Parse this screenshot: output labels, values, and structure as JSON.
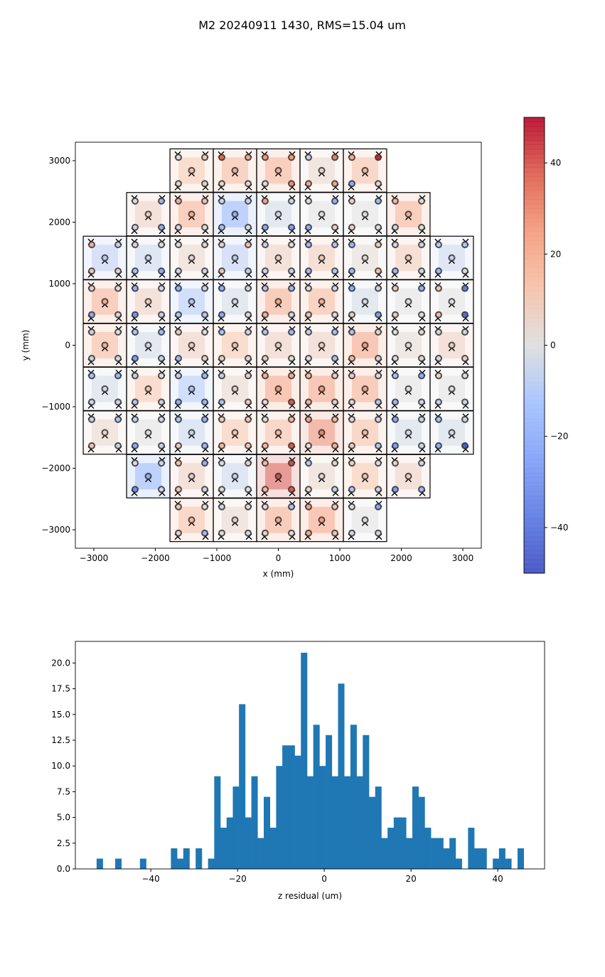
{
  "title": "M2 20240911 1430, RMS=15.04 um",
  "chart_data": [
    {
      "type": "heatmap",
      "xlabel": "x (mm)",
      "ylabel": "y (mm)",
      "xlim": [
        -3300,
        3300
      ],
      "ylim": [
        -3300,
        3300
      ],
      "xticks": [
        -3000,
        -2000,
        -1000,
        0,
        1000,
        2000,
        3000
      ],
      "xtick_labels": [
        "−3000",
        "−2000",
        "−1000",
        "0",
        "1000",
        "2000",
        "3000"
      ],
      "yticks": [
        3000,
        2000,
        1000,
        0,
        -1000,
        -2000,
        -3000
      ],
      "ytick_labels": [
        "3000",
        "2000",
        "1000",
        "0",
        "−1000",
        "−2000",
        "−3000"
      ],
      "colormap": "coolwarm",
      "colorbar": {
        "range": [
          -50,
          50
        ],
        "ticks": [
          40,
          20,
          0,
          -20,
          -40
        ],
        "tick_labels": [
          "40",
          "20",
          "0",
          "−20",
          "−40"
        ]
      },
      "point_order": [
        "center",
        "upper-left",
        "upper-right",
        "lower-left",
        "lower-right"
      ],
      "segments": [
        {
          "x": -1410,
          "y": 2840,
          "values": [
            12,
            0,
            8,
            2,
            3
          ]
        },
        {
          "x": -705,
          "y": 2840,
          "values": [
            18,
            35,
            20,
            3,
            2
          ]
        },
        {
          "x": 0,
          "y": 2840,
          "values": [
            20,
            25,
            25,
            0,
            28
          ]
        },
        {
          "x": 705,
          "y": 2840,
          "values": [
            5,
            -5,
            30,
            20,
            22
          ]
        },
        {
          "x": 1410,
          "y": 2840,
          "values": [
            15,
            18,
            45,
            -20,
            3
          ]
        },
        {
          "x": -2115,
          "y": 2130,
          "values": [
            8,
            0,
            -15,
            -3,
            -20
          ]
        },
        {
          "x": -1410,
          "y": 2130,
          "values": [
            20,
            18,
            10,
            -3,
            0
          ]
        },
        {
          "x": -705,
          "y": 2130,
          "values": [
            -20,
            -3,
            -3,
            -12,
            0
          ]
        },
        {
          "x": 0,
          "y": 2130,
          "values": [
            -3,
            22,
            -3,
            -20,
            -25
          ]
        },
        {
          "x": 705,
          "y": 2130,
          "values": [
            0,
            0,
            -18,
            -20,
            5
          ]
        },
        {
          "x": 1410,
          "y": 2130,
          "values": [
            0,
            5,
            -15,
            5,
            0
          ]
        },
        {
          "x": 2115,
          "y": 2130,
          "values": [
            20,
            15,
            2,
            -3,
            0
          ]
        },
        {
          "x": -2820,
          "y": 1420,
          "values": [
            -8,
            18,
            -5,
            10,
            5
          ]
        },
        {
          "x": -2115,
          "y": 1420,
          "values": [
            -5,
            5,
            0,
            -12,
            -20
          ]
        },
        {
          "x": -1410,
          "y": 1420,
          "values": [
            5,
            0,
            3,
            -3,
            -3
          ]
        },
        {
          "x": -705,
          "y": 1420,
          "values": [
            -8,
            3,
            12,
            10,
            -5
          ]
        },
        {
          "x": 0,
          "y": 1420,
          "values": [
            8,
            -5,
            0,
            -3,
            -5
          ]
        },
        {
          "x": 705,
          "y": 1420,
          "values": [
            10,
            -15,
            -10,
            -15,
            -8
          ]
        },
        {
          "x": 1410,
          "y": 1420,
          "values": [
            3,
            -15,
            8,
            -15,
            12
          ]
        },
        {
          "x": 2115,
          "y": 1420,
          "values": [
            10,
            -3,
            -3,
            -15,
            -3
          ]
        },
        {
          "x": 2820,
          "y": 1420,
          "values": [
            -5,
            -8,
            -10,
            -15,
            0
          ]
        },
        {
          "x": -2820,
          "y": 710,
          "values": [
            20,
            5,
            0,
            -20,
            3
          ]
        },
        {
          "x": -2115,
          "y": 710,
          "values": [
            8,
            -18,
            -3,
            -28,
            -5
          ]
        },
        {
          "x": -1410,
          "y": 710,
          "values": [
            -10,
            -18,
            -3,
            -10,
            -8
          ]
        },
        {
          "x": -705,
          "y": 710,
          "values": [
            -3,
            -18,
            -3,
            -20,
            3
          ]
        },
        {
          "x": 0,
          "y": 710,
          "values": [
            22,
            -10,
            -15,
            18,
            -3
          ]
        },
        {
          "x": 705,
          "y": 710,
          "values": [
            18,
            0,
            -3,
            12,
            0
          ]
        },
        {
          "x": 1410,
          "y": 710,
          "values": [
            -3,
            -18,
            -3,
            5,
            -25
          ]
        },
        {
          "x": 2115,
          "y": 710,
          "values": [
            0,
            8,
            -18,
            8,
            0
          ]
        },
        {
          "x": 2820,
          "y": 710,
          "values": [
            0,
            10,
            -35,
            15,
            -40
          ]
        },
        {
          "x": -2820,
          "y": 0,
          "values": [
            18,
            -5,
            0,
            -5,
            -3
          ]
        },
        {
          "x": -2115,
          "y": 0,
          "values": [
            -3,
            -10,
            -15,
            -25,
            -5
          ]
        },
        {
          "x": -1410,
          "y": 0,
          "values": [
            8,
            8,
            0,
            -15,
            5
          ]
        },
        {
          "x": -705,
          "y": 0,
          "values": [
            12,
            -12,
            -3,
            5,
            3
          ]
        },
        {
          "x": 0,
          "y": 0,
          "values": [
            8,
            -10,
            -15,
            8,
            0
          ]
        },
        {
          "x": 705,
          "y": 0,
          "values": [
            8,
            -5,
            -12,
            0,
            -12
          ]
        },
        {
          "x": 1410,
          "y": 0,
          "values": [
            25,
            -12,
            3,
            15,
            -3
          ]
        },
        {
          "x": 2115,
          "y": 0,
          "values": [
            3,
            0,
            3,
            0,
            3
          ]
        },
        {
          "x": 2820,
          "y": 0,
          "values": [
            8,
            -3,
            -3,
            -3,
            5
          ]
        },
        {
          "x": -2820,
          "y": -710,
          "values": [
            -3,
            -12,
            -15,
            -3,
            -3
          ]
        },
        {
          "x": -2115,
          "y": -710,
          "values": [
            12,
            -5,
            0,
            -10,
            -5
          ]
        },
        {
          "x": -1410,
          "y": -710,
          "values": [
            -10,
            -5,
            -15,
            -20,
            -15
          ]
        },
        {
          "x": -705,
          "y": -710,
          "values": [
            5,
            -5,
            5,
            -12,
            8
          ]
        },
        {
          "x": 0,
          "y": -710,
          "values": [
            25,
            18,
            20,
            0,
            38
          ]
        },
        {
          "x": 705,
          "y": -710,
          "values": [
            25,
            15,
            5,
            18,
            5
          ]
        },
        {
          "x": 1410,
          "y": -710,
          "values": [
            22,
            5,
            0,
            3,
            -10
          ]
        },
        {
          "x": 2115,
          "y": -710,
          "values": [
            0,
            -12,
            -20,
            -15,
            -3
          ]
        },
        {
          "x": 2820,
          "y": -710,
          "values": [
            0,
            5,
            0,
            -5,
            -3
          ]
        },
        {
          "x": -2820,
          "y": -1420,
          "values": [
            5,
            -5,
            -10,
            12,
            -5
          ]
        },
        {
          "x": -2115,
          "y": -1420,
          "values": [
            0,
            -5,
            -3,
            -20,
            -5
          ]
        },
        {
          "x": -1410,
          "y": -1420,
          "values": [
            -5,
            -10,
            -18,
            8,
            -15
          ]
        },
        {
          "x": -705,
          "y": -1420,
          "values": [
            12,
            8,
            10,
            15,
            8
          ]
        },
        {
          "x": 0,
          "y": -1420,
          "values": [
            15,
            0,
            15,
            15,
            38
          ]
        },
        {
          "x": 705,
          "y": -1420,
          "values": [
            30,
            22,
            15,
            0,
            18
          ]
        },
        {
          "x": 1410,
          "y": -1420,
          "values": [
            15,
            3,
            -3,
            8,
            -10
          ]
        },
        {
          "x": 2115,
          "y": -1420,
          "values": [
            -3,
            -20,
            -5,
            -25,
            -3
          ]
        },
        {
          "x": 2820,
          "y": -1420,
          "values": [
            -3,
            -12,
            -3,
            -20,
            -45
          ]
        },
        {
          "x": -2115,
          "y": -2130,
          "values": [
            -20,
            0,
            -3,
            -30,
            -3
          ]
        },
        {
          "x": -1410,
          "y": -2130,
          "values": [
            8,
            12,
            -18,
            10,
            -3
          ]
        },
        {
          "x": -705,
          "y": -2130,
          "values": [
            -5,
            0,
            5,
            3,
            0
          ]
        },
        {
          "x": 0,
          "y": -2130,
          "values": [
            40,
            15,
            40,
            15,
            38
          ]
        },
        {
          "x": 705,
          "y": -2130,
          "values": [
            5,
            -8,
            3,
            5,
            -5
          ]
        },
        {
          "x": 1410,
          "y": -2130,
          "values": [
            12,
            5,
            0,
            -10,
            -3
          ]
        },
        {
          "x": 2115,
          "y": -2130,
          "values": [
            8,
            5,
            -3,
            -25,
            -15
          ]
        },
        {
          "x": -1410,
          "y": -2840,
          "values": [
            15,
            10,
            0,
            5,
            -15
          ]
        },
        {
          "x": -705,
          "y": -2840,
          "values": [
            5,
            -3,
            0,
            0,
            -3
          ]
        },
        {
          "x": 0,
          "y": -2840,
          "values": [
            22,
            0,
            -10,
            3,
            0
          ]
        },
        {
          "x": 705,
          "y": -2840,
          "values": [
            25,
            22,
            10,
            20,
            10
          ]
        },
        {
          "x": 1410,
          "y": -2840,
          "values": [
            0,
            0,
            -22,
            -3,
            -3
          ]
        }
      ]
    },
    {
      "type": "bar",
      "subtype": "histogram",
      "xlabel": "z residual (um)",
      "ylabel": "",
      "xlim": [
        -57.4,
        50.8
      ],
      "ylim": [
        0,
        22.1
      ],
      "xticks": [
        -40,
        -20,
        0,
        20,
        40
      ],
      "xtick_labels": [
        "−40",
        "−20",
        "0",
        "20",
        "40"
      ],
      "yticks": [
        0,
        2.5,
        5,
        7.5,
        10,
        12.5,
        15,
        17.5,
        20
      ],
      "ytick_labels": [
        "0.0",
        "2.5",
        "5.0",
        "7.5",
        "10.0",
        "12.5",
        "15.0",
        "17.5",
        "20.0"
      ],
      "color": "#1f77b4",
      "bin_start": -52.5,
      "bin_width": 1.4275,
      "counts": [
        1,
        0,
        0,
        1,
        0,
        0,
        0,
        1,
        0,
        0,
        0,
        0,
        2,
        1,
        2,
        0,
        2,
        0,
        1,
        9,
        4,
        5,
        8,
        16,
        5,
        9,
        3,
        7,
        4,
        10,
        12,
        12,
        11,
        21,
        9,
        14,
        10,
        13,
        9,
        18,
        9,
        14,
        9,
        13,
        7,
        8,
        3,
        4,
        5,
        5,
        3,
        8,
        7,
        4,
        3,
        3,
        2,
        3,
        1,
        0,
        4,
        2,
        2,
        0,
        1,
        2,
        1,
        0,
        2
      ]
    }
  ]
}
